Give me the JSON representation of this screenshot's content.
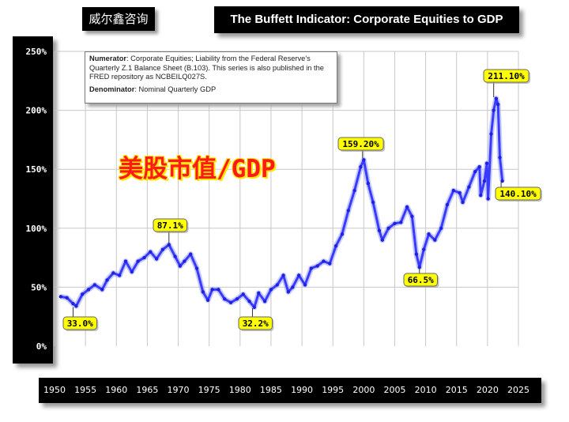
{
  "brand": "威尔鑫咨询",
  "chart_data": {
    "type": "line",
    "title": "The Buffett Indicator: Corporate Equities to GDP",
    "overlay_label": "美股市值/GDP",
    "ylim": [
      0,
      250
    ],
    "xlim": [
      1950,
      2025
    ],
    "y_ticks": [
      "0%",
      "50%",
      "100%",
      "150%",
      "200%",
      "250%"
    ],
    "x_ticks": [
      "1950",
      "1955",
      "1960",
      "1965",
      "1970",
      "1975",
      "1980",
      "1985",
      "1990",
      "1995",
      "2000",
      "2005",
      "2010",
      "2015",
      "2020",
      "2025"
    ],
    "grid": true,
    "line_color": "#3a3aff",
    "note": {
      "numerator_label": "Numerator",
      "numerator_text": ": Corporate Equities; Liability from the Federal Reserve's Quarterly Z.1 Balance Sheet (B.103). This series is also published in the FRED repository as NCBEILQ027S.",
      "denominator_label": "Denominator",
      "denominator_text": ": Nominal Quarterly GDP"
    },
    "annotations": [
      {
        "text": "33.0%",
        "x": 1953.0,
        "y": 33.0
      },
      {
        "text": "87.1%",
        "x": 1968.5,
        "y": 87.1
      },
      {
        "text": "32.2%",
        "x": 1982.0,
        "y": 32.2
      },
      {
        "text": "159.20%",
        "x": 1999.8,
        "y": 159.2
      },
      {
        "text": "66.5%",
        "x": 2009.0,
        "y": 66.5
      },
      {
        "text": "211.10%",
        "x": 2021.0,
        "y": 211.1
      },
      {
        "text": "140.10%",
        "x": 2022.2,
        "y": 140.1
      }
    ],
    "series": [
      {
        "values": [
          [
            1951.0,
            42
          ],
          [
            1952.0,
            41
          ],
          [
            1953.0,
            36
          ],
          [
            1953.5,
            34
          ],
          [
            1954.5,
            44
          ],
          [
            1955.5,
            48
          ],
          [
            1956.5,
            52
          ],
          [
            1957.7,
            48
          ],
          [
            1958.5,
            56
          ],
          [
            1959.5,
            62
          ],
          [
            1960.5,
            60
          ],
          [
            1961.5,
            72
          ],
          [
            1962.5,
            63
          ],
          [
            1963.5,
            72
          ],
          [
            1964.5,
            75
          ],
          [
            1965.5,
            80
          ],
          [
            1966.5,
            74
          ],
          [
            1967.5,
            82
          ],
          [
            1968.5,
            86
          ],
          [
            1969.5,
            76
          ],
          [
            1970.3,
            68
          ],
          [
            1971.0,
            72
          ],
          [
            1972.0,
            78
          ],
          [
            1973.0,
            66
          ],
          [
            1974.0,
            46
          ],
          [
            1974.8,
            39
          ],
          [
            1975.5,
            48
          ],
          [
            1976.5,
            48
          ],
          [
            1977.5,
            40
          ],
          [
            1978.5,
            37
          ],
          [
            1979.5,
            40
          ],
          [
            1980.5,
            44
          ],
          [
            1981.5,
            38
          ],
          [
            1982.3,
            33
          ],
          [
            1983.0,
            45
          ],
          [
            1984.0,
            38
          ],
          [
            1985.0,
            48
          ],
          [
            1986.0,
            52
          ],
          [
            1987.0,
            60
          ],
          [
            1987.8,
            46
          ],
          [
            1988.5,
            50
          ],
          [
            1989.5,
            60
          ],
          [
            1990.5,
            52
          ],
          [
            1991.5,
            66
          ],
          [
            1992.5,
            68
          ],
          [
            1993.5,
            72
          ],
          [
            1994.5,
            70
          ],
          [
            1995.5,
            85
          ],
          [
            1996.5,
            95
          ],
          [
            1997.5,
            115
          ],
          [
            1998.5,
            132
          ],
          [
            1999.5,
            152
          ],
          [
            2000.0,
            158
          ],
          [
            2000.7,
            138
          ],
          [
            2001.5,
            122
          ],
          [
            2002.5,
            98
          ],
          [
            2003.0,
            90
          ],
          [
            2004.0,
            100
          ],
          [
            2005.0,
            104
          ],
          [
            2006.0,
            105
          ],
          [
            2007.0,
            118
          ],
          [
            2007.8,
            110
          ],
          [
            2008.5,
            78
          ],
          [
            2009.0,
            67
          ],
          [
            2009.7,
            82
          ],
          [
            2010.5,
            95
          ],
          [
            2011.5,
            90
          ],
          [
            2012.5,
            100
          ],
          [
            2013.5,
            120
          ],
          [
            2014.5,
            132
          ],
          [
            2015.5,
            130
          ],
          [
            2016.0,
            122
          ],
          [
            2017.0,
            135
          ],
          [
            2018.0,
            148
          ],
          [
            2018.7,
            152
          ],
          [
            2018.9,
            128
          ],
          [
            2019.5,
            140
          ],
          [
            2019.9,
            155
          ],
          [
            2020.1,
            125
          ],
          [
            2020.6,
            180
          ],
          [
            2021.0,
            200
          ],
          [
            2021.4,
            210
          ],
          [
            2021.7,
            205
          ],
          [
            2022.0,
            160
          ],
          [
            2022.4,
            140
          ]
        ]
      }
    ]
  }
}
